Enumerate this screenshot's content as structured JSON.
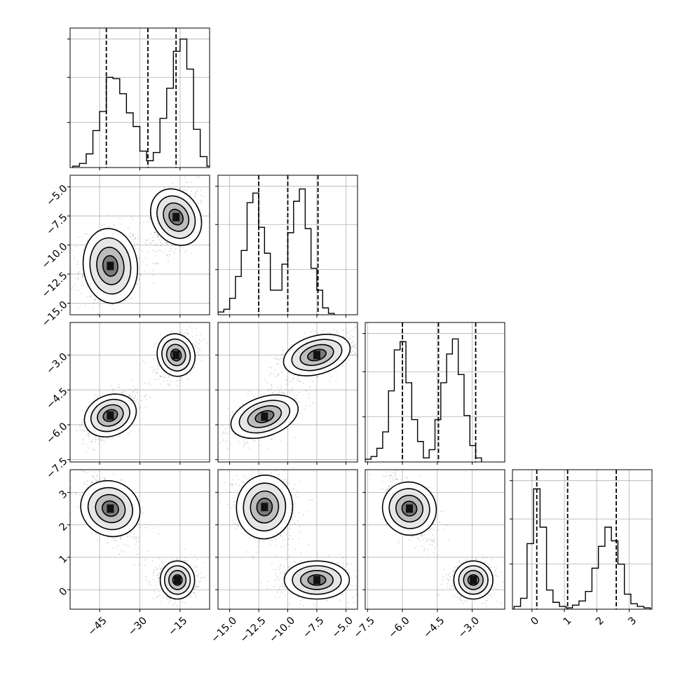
{
  "chart_data": {
    "type": "corner",
    "layout": "lower-triangle 4x4 corner plot",
    "grid": true,
    "variables": [
      {
        "id": "p0",
        "range": [
          -56,
          -4
        ],
        "ticks": [
          -45,
          -30,
          -15
        ],
        "tick_labels": [
          "−45",
          "−30",
          "−15"
        ]
      },
      {
        "id": "p1",
        "range": [
          -16,
          -4
        ],
        "ticks": [
          -15.0,
          -12.5,
          -10.0,
          -7.5,
          -5.0
        ],
        "tick_labels": [
          "−15.0",
          "−12.5",
          "−10.0",
          "−7.5",
          "−5.0"
        ]
      },
      {
        "id": "p2",
        "range": [
          -7.6,
          -1.6
        ],
        "ticks": [
          -7.5,
          -6.0,
          -4.5,
          -3.0
        ],
        "tick_labels": [
          "−7.5",
          "−6.0",
          "−4.5",
          "−3.0"
        ]
      },
      {
        "id": "p3",
        "range": [
          -0.6,
          3.7
        ],
        "ticks": [
          0,
          1,
          2,
          3
        ],
        "tick_labels": [
          "0",
          "1",
          "2",
          "3"
        ]
      }
    ],
    "histograms": [
      {
        "variable": "p0",
        "quantiles": [
          -42.5,
          -27.0,
          -16.5
        ],
        "bins_x_start": -55,
        "bin_width": 2.5,
        "counts": [
          0.01,
          0.03,
          0.1,
          0.27,
          0.41,
          0.66,
          0.65,
          0.54,
          0.4,
          0.3,
          0.12,
          0.05,
          0.11,
          0.36,
          0.58,
          0.85,
          0.94,
          0.72,
          0.28,
          0.08,
          0.01
        ]
      },
      {
        "variable": "p1",
        "quantiles": [
          -12.5,
          -10.0,
          -7.4
        ],
        "bins_x_start": -16.0,
        "bin_width": 0.5,
        "counts": [
          0.02,
          0.04,
          0.12,
          0.28,
          0.47,
          0.82,
          0.89,
          0.64,
          0.45,
          0.18,
          0.18,
          0.37,
          0.6,
          0.83,
          0.92,
          0.63,
          0.34,
          0.18,
          0.05,
          0.01
        ]
      },
      {
        "variable": "p2",
        "quantiles": [
          -6.0,
          -4.45,
          -2.85
        ],
        "bins_x_start": -7.6,
        "bin_width": 0.25,
        "counts": [
          0.02,
          0.04,
          0.1,
          0.22,
          0.52,
          0.82,
          0.88,
          0.58,
          0.31,
          0.15,
          0.03,
          0.09,
          0.31,
          0.58,
          0.79,
          0.9,
          0.64,
          0.34,
          0.12,
          0.03
        ]
      },
      {
        "variable": "p3",
        "quantiles": [
          0.15,
          1.1,
          2.6
        ],
        "bins_x_start": -0.55,
        "bin_width": 0.2,
        "counts": [
          0.02,
          0.08,
          0.48,
          0.88,
          0.6,
          0.14,
          0.05,
          0.02,
          0.01,
          0.03,
          0.06,
          0.13,
          0.3,
          0.46,
          0.6,
          0.5,
          0.33,
          0.11,
          0.04,
          0.02,
          0.01
        ]
      }
    ],
    "panels_2d": [
      {
        "x": "p0",
        "y": "p1",
        "modes": [
          {
            "center": [
              -41,
              -11.8
            ],
            "spread": [
              5,
              1.5
            ],
            "rho": 0.1
          },
          {
            "center": [
              -16.5,
              -7.6
            ],
            "spread": [
              3.6,
              1.3
            ],
            "rho": 0.45
          }
        ]
      },
      {
        "x": "p0",
        "y": "p2",
        "modes": [
          {
            "center": [
              -41,
              -5.6
            ],
            "spread": [
              4.5,
              0.45
            ],
            "rho": 0.55
          },
          {
            "center": [
              -16.5,
              -3.0
            ],
            "spread": [
              3.3,
              0.42
            ],
            "rho": 0.3
          }
        ]
      },
      {
        "x": "p1",
        "y": "p2",
        "modes": [
          {
            "center": [
              -12.0,
              -5.65
            ],
            "spread": [
              1.4,
              0.45
            ],
            "rho": 0.6
          },
          {
            "center": [
              -7.5,
              -3.0
            ],
            "spread": [
              1.4,
              0.42
            ],
            "rho": 0.55
          }
        ]
      },
      {
        "x": "p0",
        "y": "p3",
        "modes": [
          {
            "center": [
              -41,
              2.5
            ],
            "spread": [
              4.8,
              0.45
            ],
            "rho": -0.55
          },
          {
            "center": [
              -16,
              0.3
            ],
            "spread": [
              3.2,
              0.25
            ],
            "rho": 0.0
          }
        ]
      },
      {
        "x": "p1",
        "y": "p3",
        "modes": [
          {
            "center": [
              -12.0,
              2.55
            ],
            "spread": [
              1.2,
              0.45
            ],
            "rho": -0.1
          },
          {
            "center": [
              -7.5,
              0.3
            ],
            "spread": [
              1.4,
              0.25
            ],
            "rho": 0.0
          }
        ]
      },
      {
        "x": "p2",
        "y": "p3",
        "modes": [
          {
            "center": [
              -5.7,
              2.5
            ],
            "spread": [
              0.45,
              0.45
            ],
            "rho": -0.6
          },
          {
            "center": [
              -2.95,
              0.3
            ],
            "spread": [
              0.42,
              0.25
            ],
            "rho": 0.0
          }
        ]
      }
    ]
  }
}
